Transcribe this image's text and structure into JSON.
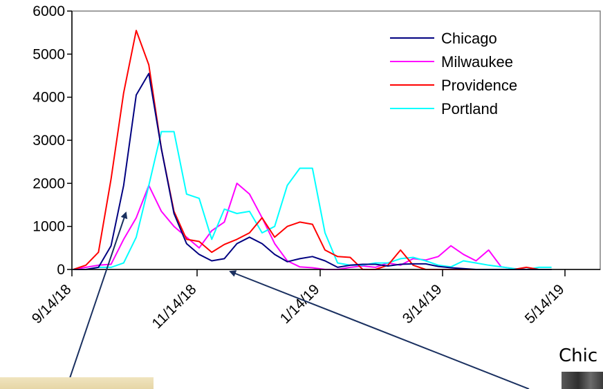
{
  "chart_data": {
    "type": "line",
    "x": [
      "9/14/18",
      "9/21/18",
      "9/28/18",
      "10/5/18",
      "10/12/18",
      "10/19/18",
      "10/26/18",
      "11/2/18",
      "11/9/18",
      "11/16/18",
      "11/23/18",
      "11/30/18",
      "12/7/18",
      "12/14/18",
      "12/21/18",
      "12/28/18",
      "1/4/19",
      "1/11/19",
      "1/18/19",
      "1/25/19",
      "2/1/19",
      "2/8/19",
      "2/15/19",
      "2/22/19",
      "3/1/19",
      "3/8/19",
      "3/15/19",
      "3/22/19",
      "3/29/19",
      "4/5/19",
      "4/12/19",
      "4/19/19",
      "4/26/19",
      "5/3/19",
      "5/10/19",
      "5/17/19",
      "5/24/19",
      "5/31/19",
      "6/7/19"
    ],
    "x_tick_labels": [
      "9/14/18",
      "11/14/18",
      "1/14/19",
      "3/14/19",
      "5/14/19"
    ],
    "y_tick_labels": [
      "0",
      "1000",
      "2000",
      "3000",
      "4000",
      "5000",
      "6000"
    ],
    "ylim": [
      0,
      6000
    ],
    "legend_position": "top-right",
    "series": [
      {
        "name": "Chicago",
        "color": "#000080",
        "values": [
          0,
          0,
          50,
          550,
          1950,
          4050,
          4550,
          2800,
          1300,
          600,
          350,
          200,
          250,
          600,
          750,
          600,
          350,
          180,
          250,
          300,
          200,
          50,
          100,
          120,
          120,
          80,
          120,
          130,
          130,
          70,
          40,
          20,
          0,
          0,
          0,
          0,
          0,
          0,
          0
        ]
      },
      {
        "name": "Milwaukee",
        "color": "#ff00ff",
        "values": [
          0,
          50,
          100,
          120,
          700,
          1200,
          1950,
          1350,
          1000,
          750,
          500,
          900,
          1100,
          2000,
          1750,
          1200,
          600,
          200,
          60,
          40,
          0,
          0,
          50,
          80,
          50,
          150,
          100,
          250,
          220,
          300,
          550,
          350,
          200,
          450,
          60,
          20,
          0,
          0,
          0
        ]
      },
      {
        "name": "Providence",
        "color": "#ff0000",
        "values": [
          0,
          100,
          400,
          2100,
          4100,
          5550,
          4750,
          2800,
          1350,
          700,
          650,
          400,
          580,
          700,
          850,
          1200,
          750,
          1000,
          1100,
          1050,
          450,
          300,
          280,
          0,
          0,
          100,
          450,
          100,
          0,
          0,
          0,
          0,
          0,
          0,
          0,
          0,
          50,
          0,
          0
        ]
      },
      {
        "name": "Portland",
        "color": "#00ffff",
        "values": [
          0,
          0,
          50,
          50,
          150,
          750,
          1950,
          3200,
          3200,
          1750,
          1650,
          700,
          1400,
          1300,
          1350,
          850,
          1000,
          1950,
          2350,
          2350,
          850,
          150,
          100,
          100,
          150,
          150,
          250,
          280,
          200,
          100,
          60,
          200,
          150,
          100,
          60,
          20,
          0,
          50,
          50
        ]
      }
    ]
  },
  "overlay": {
    "caption_text": "Chic"
  }
}
